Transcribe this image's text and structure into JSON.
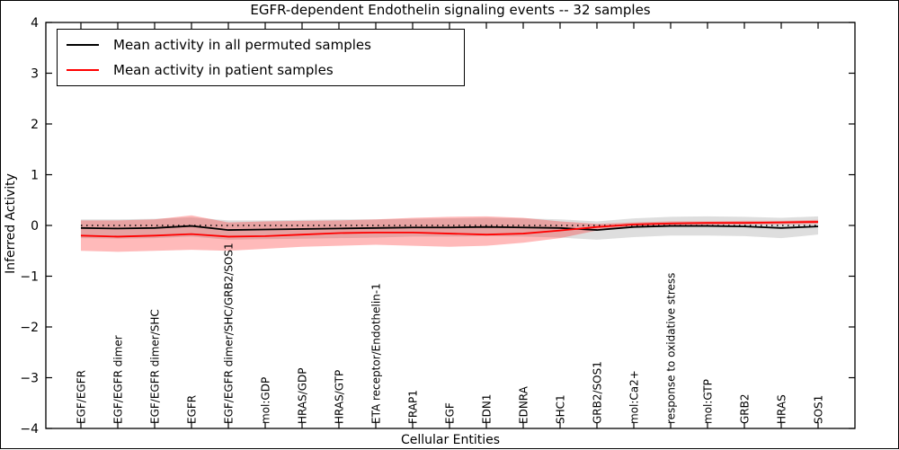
{
  "chart_data": {
    "type": "line",
    "title": "EGFR-dependent Endothelin signaling events -- 32 samples",
    "xlabel": "Cellular Entities",
    "ylabel": "Inferred Activity",
    "ylim": [
      -4,
      4
    ],
    "yticks": [
      4,
      3,
      2,
      1,
      0,
      -1,
      -2,
      -3,
      -4
    ],
    "ytick_labels": [
      "4",
      "3",
      "2",
      "1",
      "0",
      "−1",
      "−2",
      "−3",
      "−4"
    ],
    "grid": false,
    "legend_position": "upper left",
    "zero_line": "dotted",
    "categories": [
      "EGF/EGFR",
      "EGF/EGFR dimer",
      "EGF/EGFR dimer/SHC",
      "EGFR",
      "EGF/EGFR dimer/SHC/GRB2/SOS1",
      "mol:GDP",
      "HRAS/GDP",
      "HRAS/GTP",
      "ETA receptor/Endothelin-1",
      "FRAP1",
      "EGF",
      "EDN1",
      "EDNRA",
      "SHC1",
      "GRB2/SOS1",
      "mol:Ca2+",
      "response to oxidative stress",
      "mol:GTP",
      "GRB2",
      "HRAS",
      "SOS1"
    ],
    "series": [
      {
        "name": "Mean activity in all permuted samples",
        "color": "#000000",
        "band_color": "#000000",
        "band_opacity": 0.13,
        "values": [
          -0.05,
          -0.06,
          -0.05,
          -0.01,
          -0.09,
          -0.08,
          -0.07,
          -0.06,
          -0.05,
          -0.04,
          -0.04,
          -0.03,
          -0.04,
          -0.05,
          -0.09,
          -0.03,
          -0.01,
          -0.01,
          -0.02,
          -0.05,
          -0.02
        ],
        "band_upper": [
          0.12,
          0.12,
          0.13,
          0.16,
          0.1,
          0.1,
          0.11,
          0.12,
          0.12,
          0.13,
          0.14,
          0.15,
          0.14,
          0.12,
          0.08,
          0.14,
          0.17,
          0.18,
          0.17,
          0.15,
          0.18
        ],
        "band_lower": [
          -0.25,
          -0.26,
          -0.25,
          -0.22,
          -0.28,
          -0.27,
          -0.26,
          -0.25,
          -0.24,
          -0.22,
          -0.22,
          -0.21,
          -0.22,
          -0.24,
          -0.28,
          -0.23,
          -0.2,
          -0.2,
          -0.21,
          -0.25,
          -0.18
        ]
      },
      {
        "name": "Mean activity in patient samples",
        "color": "#ff0000",
        "band_color": "#ff0000",
        "band_opacity": 0.27,
        "values": [
          -0.2,
          -0.22,
          -0.2,
          -0.17,
          -0.22,
          -0.21,
          -0.18,
          -0.15,
          -0.14,
          -0.14,
          -0.16,
          -0.18,
          -0.16,
          -0.1,
          -0.03,
          0.02,
          0.04,
          0.05,
          0.05,
          0.06,
          0.07
        ],
        "band_upper": [
          0.1,
          0.1,
          0.12,
          0.2,
          0.06,
          0.08,
          0.09,
          0.1,
          0.12,
          0.15,
          0.17,
          0.18,
          0.15,
          0.08,
          0.03,
          0.06,
          0.08,
          0.08,
          0.09,
          0.09,
          0.11
        ],
        "band_lower": [
          -0.5,
          -0.52,
          -0.5,
          -0.48,
          -0.5,
          -0.46,
          -0.42,
          -0.4,
          -0.38,
          -0.4,
          -0.42,
          -0.4,
          -0.34,
          -0.25,
          -0.1,
          -0.02,
          0.0,
          0.01,
          0.02,
          0.02,
          0.03
        ]
      }
    ]
  }
}
